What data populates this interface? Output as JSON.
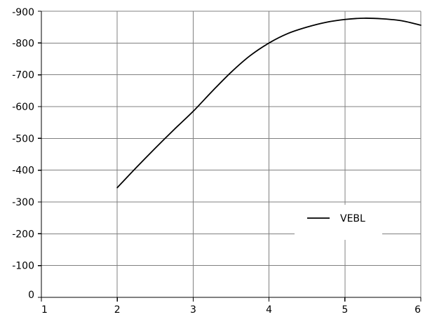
{
  "chart_data": {
    "type": "line",
    "title": "",
    "xlabel": "",
    "ylabel": "",
    "xlim": [
      1,
      6
    ],
    "ylim": [
      0,
      -900
    ],
    "x_ticks": [
      1,
      2,
      3,
      4,
      5,
      6
    ],
    "y_ticks": [
      0,
      -100,
      -200,
      -300,
      -400,
      -500,
      -600,
      -700,
      -800,
      -900
    ],
    "x_tick_labels": [
      "1",
      "2",
      "3",
      "4",
      "5",
      "6"
    ],
    "y_tick_labels": [
      "0",
      "-100",
      "-200",
      "-300",
      "-400",
      "-500",
      "-600",
      "-700",
      "-800",
      "-900"
    ],
    "grid": true,
    "legend_position": "middle-right",
    "series": [
      {
        "name": "VEBL",
        "color": "#000000",
        "x": [
          2.0,
          2.25,
          2.5,
          2.75,
          3.0,
          3.25,
          3.5,
          3.75,
          4.0,
          4.25,
          4.5,
          4.75,
          5.0,
          5.25,
          5.5,
          5.75,
          6.0
        ],
        "y": [
          -345,
          -408,
          -469,
          -528,
          -585,
          -648,
          -708,
          -760,
          -800,
          -830,
          -850,
          -865,
          -874,
          -878,
          -876,
          -870,
          -856
        ]
      }
    ]
  }
}
